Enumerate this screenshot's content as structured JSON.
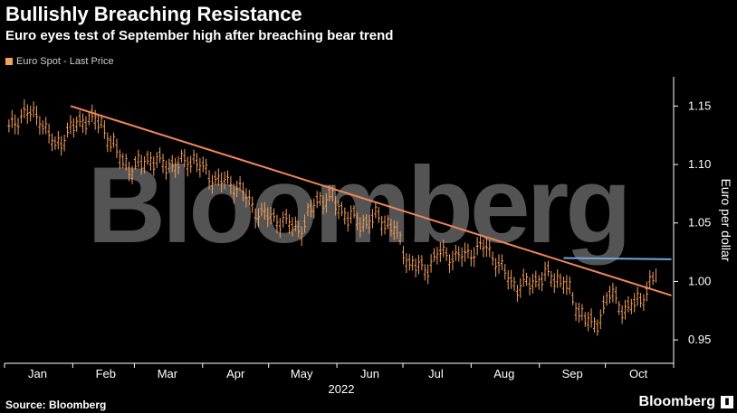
{
  "header": {
    "title": "Bullishly Breaching Resistance",
    "subtitle": "Euro eyes test of September high after breaching bear trend"
  },
  "legend": {
    "label": "Euro Spot - Last Price",
    "color": "#f6a05a"
  },
  "watermark": "Bloomberg",
  "footer": {
    "source": "Source: Bloomberg",
    "brand": "Bloomberg",
    "brand_icon": "bloomberg-chart-icon"
  },
  "colors": {
    "background": "#000000",
    "candle": "#f6a05a",
    "trendline": "#f0875a",
    "resistance": "#6fa8dc",
    "axis": "#ffffff"
  },
  "chart_data": {
    "type": "line",
    "ylabel": "Euro per dollar",
    "ylim": [
      0.93,
      1.175
    ],
    "yticks": [
      0.95,
      1.0,
      1.05,
      1.1,
      1.15
    ],
    "ytick_labels": [
      "0.95",
      "1.00",
      "1.05",
      "1.10",
      "1.15"
    ],
    "year_label": "2022",
    "months": [
      "Jan",
      "Feb",
      "Mar",
      "Apr",
      "May",
      "Jun",
      "Jul",
      "Aug",
      "Sep",
      "Oct"
    ],
    "grid": false,
    "legend_position": "top-left",
    "series": [
      {
        "name": "Euro Spot - Last Price",
        "style": "bar-ohlc",
        "x": [
          "2022-01-03",
          "2022-01-10",
          "2022-01-17",
          "2022-01-24",
          "2022-01-31",
          "2022-02-07",
          "2022-02-14",
          "2022-02-21",
          "2022-02-28",
          "2022-03-07",
          "2022-03-14",
          "2022-03-21",
          "2022-03-28",
          "2022-04-04",
          "2022-04-11",
          "2022-04-18",
          "2022-04-25",
          "2022-05-02",
          "2022-05-09",
          "2022-05-16",
          "2022-05-23",
          "2022-05-30",
          "2022-06-06",
          "2022-06-13",
          "2022-06-20",
          "2022-06-27",
          "2022-07-04",
          "2022-07-11",
          "2022-07-18",
          "2022-07-25",
          "2022-08-01",
          "2022-08-08",
          "2022-08-15",
          "2022-08-22",
          "2022-08-29",
          "2022-09-05",
          "2022-09-12",
          "2022-09-19",
          "2022-09-26",
          "2022-10-03",
          "2022-10-10",
          "2022-10-17",
          "2022-10-24"
        ],
        "values": [
          1.13,
          1.145,
          1.14,
          1.115,
          1.13,
          1.14,
          1.135,
          1.11,
          1.095,
          1.105,
          1.1,
          1.1,
          1.105,
          1.09,
          1.085,
          1.08,
          1.06,
          1.055,
          1.05,
          1.045,
          1.07,
          1.07,
          1.055,
          1.05,
          1.055,
          1.045,
          1.015,
          1.01,
          1.025,
          1.02,
          1.025,
          1.03,
          1.01,
          0.995,
          1.0,
          1.005,
          1.0,
          0.975,
          0.96,
          0.99,
          0.975,
          0.985,
          1.005
        ]
      },
      {
        "name": "Trend line",
        "style": "line",
        "x": [
          "2022-01-31",
          "2022-10-31"
        ],
        "values": [
          1.15,
          0.988
        ]
      },
      {
        "name": "September high",
        "style": "line",
        "x": [
          "2022-09-12",
          "2022-10-31"
        ],
        "values": [
          1.02,
          1.019
        ]
      }
    ]
  }
}
